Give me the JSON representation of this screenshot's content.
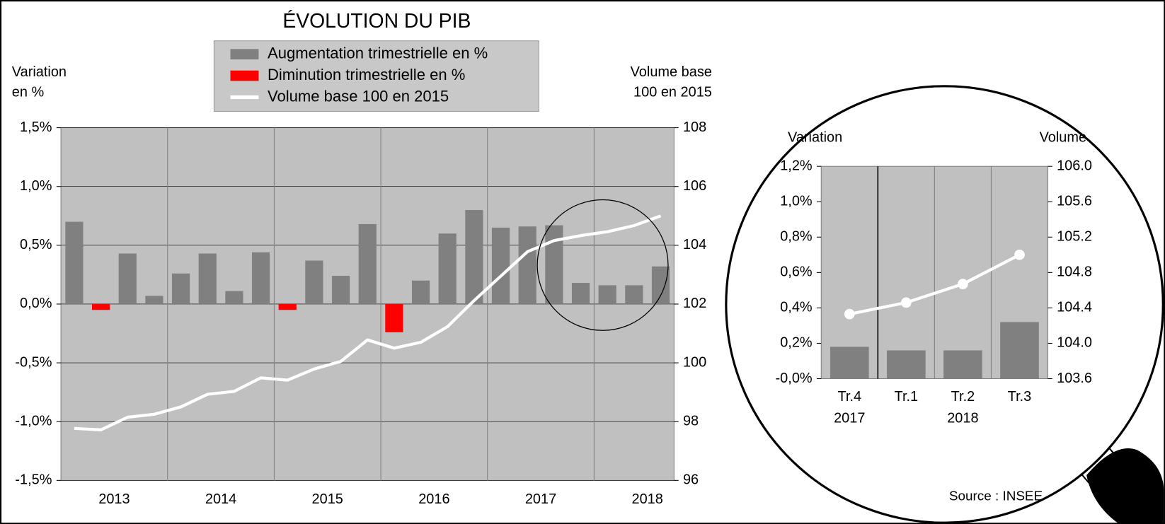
{
  "chart_data": [
    {
      "type": "bar",
      "title": "ÉVOLUTION DU PIB",
      "y_label": [
        "Variation",
        "en %"
      ],
      "y2_label": [
        "Volume base",
        "100 en 2015"
      ],
      "categories": [
        null,
        null,
        null,
        null,
        null,
        null,
        null,
        null,
        null,
        null,
        null,
        null,
        null,
        null,
        null,
        null,
        null,
        null,
        null,
        null,
        null,
        null,
        null
      ],
      "year_labels": [
        "2013",
        "2014",
        "2015",
        "2016",
        "2017",
        "2018"
      ],
      "series": [
        {
          "name": "Augmentation trimestrielle en %",
          "color": "#808080",
          "values": [
            0.7,
            null,
            0.43,
            0.07,
            0.26,
            0.43,
            0.11,
            0.44,
            null,
            0.37,
            0.24,
            0.68,
            null,
            0.2,
            0.6,
            0.8,
            0.65,
            0.66,
            0.67,
            0.18,
            0.16,
            0.16,
            0.32
          ]
        },
        {
          "name": "Diminution trimestrielle en %",
          "color": "#ff0000",
          "values": [
            null,
            -0.05,
            null,
            null,
            null,
            null,
            null,
            null,
            -0.05,
            null,
            null,
            null,
            -0.24,
            null,
            null,
            null,
            null,
            null,
            null,
            null,
            null,
            null,
            null
          ]
        },
        {
          "name": "Volume base 100 en 2015",
          "color": "#ffffff",
          "axis": "y2",
          "values": [
            97.77,
            97.72,
            98.15,
            98.25,
            98.5,
            98.93,
            99.03,
            99.49,
            99.41,
            99.79,
            100.05,
            100.78,
            100.5,
            100.7,
            101.23,
            102.12,
            102.95,
            103.78,
            104.16,
            104.33,
            104.46,
            104.67,
            105.0
          ]
        }
      ],
      "ylim": [
        -1.5,
        1.5
      ],
      "yticks": [
        {
          "value": -1.5,
          "label": "-1,5%"
        },
        {
          "value": -1.0,
          "label": "-1,0%"
        },
        {
          "value": -0.5,
          "label": "-0,5%"
        },
        {
          "value": 0,
          "label": "0,0%"
        },
        {
          "value": 0.5,
          "label": "0,5%"
        },
        {
          "value": 1.0,
          "label": "1,0%"
        },
        {
          "value": 1.5,
          "label": "1,5%"
        }
      ],
      "y2lim": [
        96,
        108
      ],
      "y2ticks": [
        96,
        98,
        100,
        102,
        104,
        106,
        108
      ],
      "grid": true,
      "legend": "top"
    },
    {
      "type": "bar",
      "y_label": [
        "Variation"
      ],
      "y2_label": [
        "Volume"
      ],
      "categories": [
        "Tr.4",
        "Tr.1",
        "Tr.2",
        "Tr.3"
      ],
      "year_labels": [
        "2017",
        "2018"
      ],
      "series": [
        {
          "name": "Augmentation trimestrielle en %",
          "color": "#808080",
          "values": [
            0.18,
            0.16,
            0.16,
            0.32
          ]
        },
        {
          "name": "Volume base 100 en 2015",
          "color": "#ffffff",
          "axis": "y2",
          "markers": true,
          "values": [
            104.33,
            104.46,
            104.67,
            105.0
          ]
        }
      ],
      "ylim": [
        0,
        1.2
      ],
      "yticks": [
        {
          "value": 0,
          "label": "-0,0%"
        },
        {
          "value": 0.2,
          "label": "0,2%"
        },
        {
          "value": 0.4,
          "label": "0,4%"
        },
        {
          "value": 0.6,
          "label": "0,6%"
        },
        {
          "value": 0.8,
          "label": "0,8%"
        },
        {
          "value": 1.0,
          "label": "1,0%"
        },
        {
          "value": 1.2,
          "label": "1,2%"
        }
      ],
      "y2lim": [
        103.6,
        106.0
      ],
      "y2ticks": [
        {
          "value": 103.6,
          "label": "103.6"
        },
        {
          "value": 104.0,
          "label": "104.0"
        },
        {
          "value": 104.4,
          "label": "104.4"
        },
        {
          "value": 104.8,
          "label": "104.8"
        },
        {
          "value": 105.2,
          "label": "105.2"
        },
        {
          "value": 105.6,
          "label": "105.6"
        },
        {
          "value": 106.0,
          "label": "106.0"
        }
      ],
      "grid": false
    }
  ],
  "source": "Source : INSEE"
}
